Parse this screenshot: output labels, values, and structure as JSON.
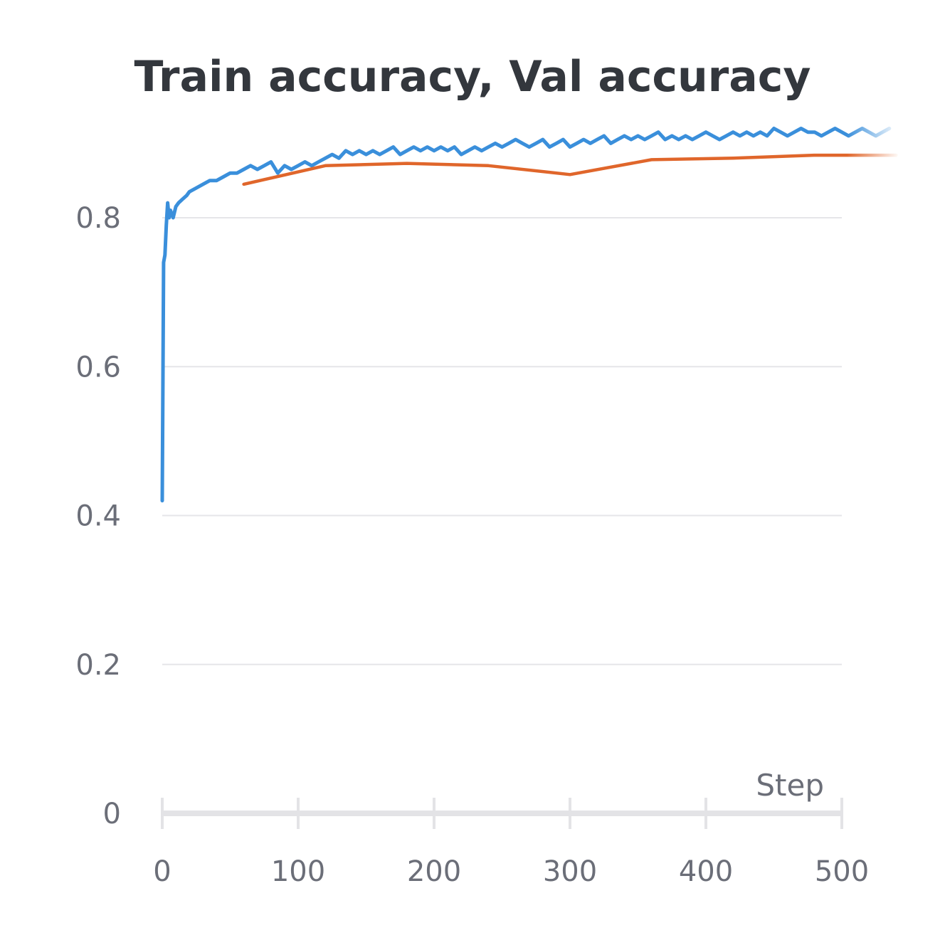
{
  "chart_data": {
    "type": "line",
    "title": "Train accuracy, Val accuracy",
    "xlabel": "Step",
    "ylabel": "",
    "xlim": [
      0,
      500
    ],
    "ylim": [
      0,
      0.9
    ],
    "x_ticks": [
      0,
      100,
      200,
      300,
      400,
      500
    ],
    "y_ticks": [
      0,
      0.2,
      0.4,
      0.6,
      0.8
    ],
    "x_tick_labels": [
      "0",
      "100",
      "200",
      "300",
      "400",
      "500"
    ],
    "y_tick_labels": [
      "0",
      "0.2",
      "0.4",
      "0.6",
      "0.8"
    ],
    "grid": true,
    "series": [
      {
        "color": "#3a8fdb",
        "x": [
          0,
          1,
          2,
          3,
          4,
          5,
          6,
          8,
          10,
          12,
          15,
          18,
          20,
          25,
          30,
          35,
          40,
          45,
          50,
          55,
          60,
          65,
          70,
          75,
          80,
          85,
          90,
          95,
          100,
          105,
          110,
          115,
          120,
          125,
          130,
          135,
          140,
          145,
          150,
          155,
          160,
          165,
          170,
          175,
          180,
          185,
          190,
          195,
          200,
          205,
          210,
          215,
          220,
          225,
          230,
          235,
          240,
          245,
          250,
          255,
          260,
          265,
          270,
          275,
          280,
          285,
          290,
          295,
          300,
          305,
          310,
          315,
          320,
          325,
          330,
          335,
          340,
          345,
          350,
          355,
          360,
          365,
          370,
          375,
          380,
          385,
          390,
          395,
          400,
          405,
          410,
          415,
          420,
          425,
          430,
          435,
          440,
          445,
          450,
          455,
          460,
          465,
          470,
          475,
          480,
          485,
          490,
          495,
          500,
          505,
          510,
          515,
          520,
          525,
          530,
          535
        ],
        "values": [
          0.42,
          0.74,
          0.75,
          0.79,
          0.82,
          0.8,
          0.81,
          0.8,
          0.815,
          0.82,
          0.825,
          0.83,
          0.835,
          0.84,
          0.845,
          0.85,
          0.85,
          0.855,
          0.86,
          0.86,
          0.865,
          0.87,
          0.865,
          0.87,
          0.875,
          0.86,
          0.87,
          0.865,
          0.87,
          0.875,
          0.87,
          0.875,
          0.88,
          0.885,
          0.88,
          0.89,
          0.885,
          0.89,
          0.885,
          0.89,
          0.885,
          0.89,
          0.895,
          0.885,
          0.89,
          0.895,
          0.89,
          0.895,
          0.89,
          0.895,
          0.89,
          0.895,
          0.885,
          0.89,
          0.895,
          0.89,
          0.895,
          0.9,
          0.895,
          0.9,
          0.905,
          0.9,
          0.895,
          0.9,
          0.905,
          0.895,
          0.9,
          0.905,
          0.895,
          0.9,
          0.905,
          0.9,
          0.905,
          0.91,
          0.9,
          0.905,
          0.91,
          0.905,
          0.91,
          0.905,
          0.91,
          0.915,
          0.905,
          0.91,
          0.905,
          0.91,
          0.905,
          0.91,
          0.915,
          0.91,
          0.905,
          0.91,
          0.915,
          0.91,
          0.915,
          0.91,
          0.915,
          0.91,
          0.92,
          0.915,
          0.91,
          0.915,
          0.92,
          0.915,
          0.915,
          0.91,
          0.915,
          0.92,
          0.915,
          0.91,
          0.915,
          0.92,
          0.915,
          0.91,
          0.915,
          0.92
        ]
      },
      {
        "color": "#e0662b",
        "x": [
          60,
          120,
          180,
          240,
          300,
          360,
          420,
          480,
          540
        ],
        "values": [
          0.845,
          0.87,
          0.873,
          0.87,
          0.858,
          0.878,
          0.88,
          0.884,
          0.884
        ]
      }
    ]
  }
}
